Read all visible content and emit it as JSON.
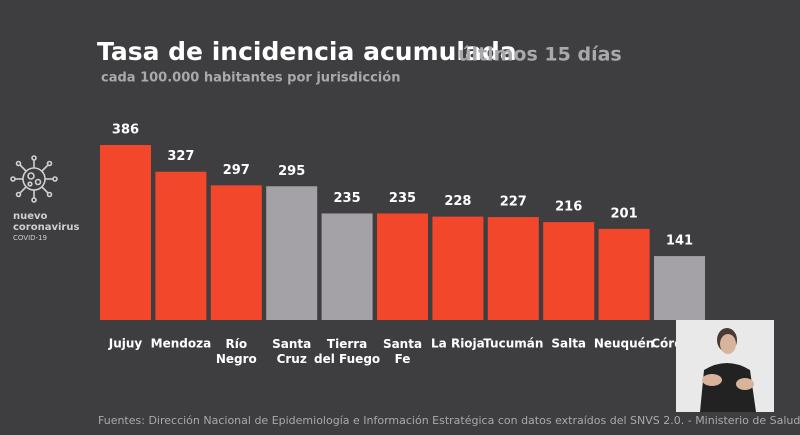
{
  "chart_data": {
    "type": "bar",
    "title": "Tasa de incidencia acumulada",
    "title_note": "últimos 15 días",
    "subtitle": "cada 100.000 habitantes por jurisdicción",
    "categories": [
      "Jujuy",
      "Mendoza",
      "Río\nNegro",
      "Santa\nCruz",
      "Tierra\ndel Fuego",
      "Santa\nFe",
      "La Rioja",
      "Tucumán",
      "Salta",
      "Neuquén",
      "Córdoba"
    ],
    "values": [
      386,
      327,
      297,
      295,
      235,
      235,
      228,
      227,
      216,
      201,
      141
    ],
    "colors": [
      "#f2472a",
      "#f2472a",
      "#f2472a",
      "#a4a2a7",
      "#a4a2a7",
      "#f2472a",
      "#f2472a",
      "#f2472a",
      "#f2472a",
      "#f2472a",
      "#a4a2a7"
    ],
    "source": "Fuentes: Dirección Nacional de Epidemiología e Información Estratégica con datos extraídos del SNVS 2.0. - Ministerio de Salud."
  },
  "logo": {
    "label": "nuevo\ncoronavirus",
    "sublabel": "COVID-19"
  }
}
